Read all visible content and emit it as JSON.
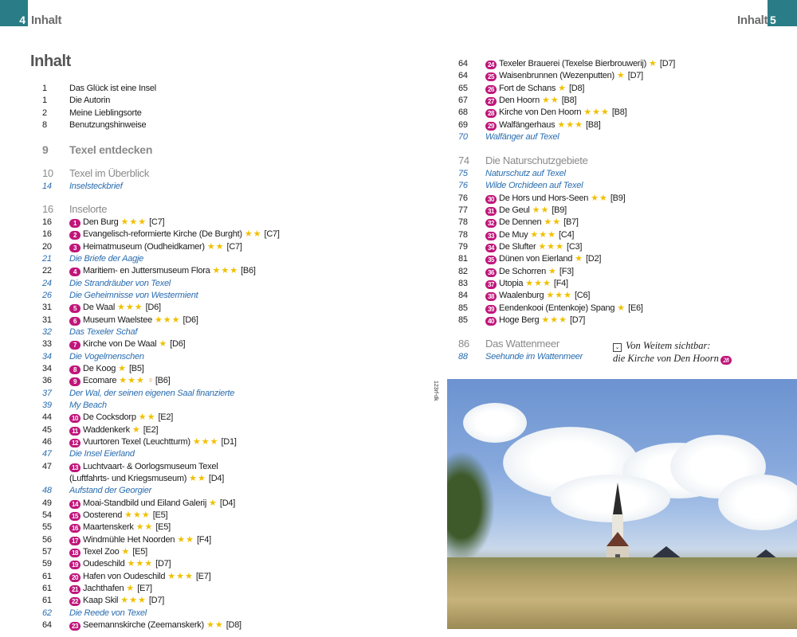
{
  "header": {
    "left_page": "4",
    "left_title": "Inhalt",
    "right_title": "Inhalt",
    "right_page": "5"
  },
  "title": "Inhalt",
  "colors": {
    "accent": "#2a7d86",
    "badge": "#c0157a",
    "stars": "#f0c000",
    "italic_link": "#2a6db0",
    "section": "#8a8a8a"
  },
  "groups": {
    "g1": [
      {
        "type": "plain",
        "p": "1",
        "t": "Das Glück ist eine Insel"
      },
      {
        "type": "plain",
        "p": "1",
        "t": "Die Autorin"
      },
      {
        "type": "plain",
        "p": "2",
        "t": "Meine Lieblingsorte"
      },
      {
        "type": "plain",
        "p": "8",
        "t": "Benutzungshinweise"
      }
    ],
    "g2": [
      {
        "type": "big",
        "p": "9",
        "t": "Texel entdecken"
      }
    ],
    "g3": [
      {
        "type": "sec",
        "p": "10",
        "t": "Texel im Überblick"
      },
      {
        "type": "it",
        "p": "14",
        "t": "Inselsteckbrief"
      }
    ],
    "g4": [
      {
        "type": "sec",
        "p": "16",
        "t": "Inselorte"
      },
      {
        "type": "poi",
        "p": "16",
        "n": "1",
        "t": "Den Burg",
        "s": 3,
        "g": "[C7]"
      },
      {
        "type": "poi",
        "p": "16",
        "n": "2",
        "t": "Evangelisch-reformierte Kirche (De Burght)",
        "s": 2,
        "g": "[C7]"
      },
      {
        "type": "poi",
        "p": "20",
        "n": "3",
        "t": "Heimatmuseum (Oudheidkamer)",
        "s": 2,
        "g": "[C7]"
      },
      {
        "type": "it",
        "p": "21",
        "t": "Die Briefe der Aagje"
      },
      {
        "type": "poi",
        "p": "22",
        "n": "4",
        "t": "Maritiem- en Juttersmuseum Flora",
        "s": 3,
        "g": "[B6]"
      },
      {
        "type": "it",
        "p": "24",
        "t": "Die Strandräuber von Texel"
      },
      {
        "type": "it",
        "p": "26",
        "t": "Die Geheimnisse von Westermient"
      },
      {
        "type": "poi",
        "p": "31",
        "n": "5",
        "t": "De Waal",
        "s": 3,
        "g": "[D6]"
      },
      {
        "type": "poi",
        "p": "31",
        "n": "6",
        "t": "Museum Waelstee",
        "s": 3,
        "g": "[D6]"
      },
      {
        "type": "it",
        "p": "32",
        "t": "Das Texeler Schaf"
      },
      {
        "type": "poi",
        "p": "33",
        "n": "7",
        "t": "Kirche von De Waal",
        "s": 1,
        "g": "[D6]"
      },
      {
        "type": "it",
        "p": "34",
        "t": "Die Vogelmenschen"
      },
      {
        "type": "poi",
        "p": "34",
        "n": "8",
        "t": "De Koog",
        "s": 1,
        "g": "[B5]"
      },
      {
        "type": "poi",
        "p": "36",
        "n": "9",
        "t": "Ecomare",
        "s": 3,
        "g": "[B6]",
        "icon": "child-icon"
      },
      {
        "type": "it",
        "p": "37",
        "t": "Der Wal, der seinen eigenen Saal finanzierte"
      },
      {
        "type": "it",
        "p": "39",
        "t": "My Beach"
      },
      {
        "type": "poi",
        "p": "44",
        "n": "10",
        "t": "De Cocksdorp",
        "s": 2,
        "g": "[E2]"
      },
      {
        "type": "poi",
        "p": "45",
        "n": "11",
        "t": "Waddenkerk",
        "s": 1,
        "g": "[E2]"
      },
      {
        "type": "poi",
        "p": "46",
        "n": "12",
        "t": "Vuurtoren Texel (Leuchtturm)",
        "s": 3,
        "g": "[D1]"
      },
      {
        "type": "it",
        "p": "47",
        "t": "Die Insel Eierland"
      },
      {
        "type": "poi",
        "p": "47",
        "n": "13",
        "t": "Luchtvaart- & Oorlogsmuseum Texel",
        "s": 0,
        "g": ""
      },
      {
        "type": "cont",
        "p": "",
        "t": "(Luftfahrts- und Kriegsmuseum)",
        "s": 2,
        "g": "[D4]"
      },
      {
        "type": "it",
        "p": "48",
        "t": "Aufstand der Georgier"
      },
      {
        "type": "poi",
        "p": "49",
        "n": "14",
        "t": "Moai-Standbild und Eiland Galerij",
        "s": 1,
        "g": "[D4]"
      },
      {
        "type": "poi",
        "p": "54",
        "n": "15",
        "t": "Oosterend",
        "s": 3,
        "g": "[E5]"
      },
      {
        "type": "poi",
        "p": "55",
        "n": "16",
        "t": "Maartenskerk",
        "s": 2,
        "g": "[E5]"
      },
      {
        "type": "poi",
        "p": "56",
        "n": "17",
        "t": "Windmühle Het Noorden",
        "s": 2,
        "g": "[F4]"
      },
      {
        "type": "poi",
        "p": "57",
        "n": "18",
        "t": "Texel Zoo",
        "s": 1,
        "g": "[E5]"
      },
      {
        "type": "poi",
        "p": "59",
        "n": "19",
        "t": "Oudeschild",
        "s": 3,
        "g": "[D7]"
      },
      {
        "type": "poi",
        "p": "61",
        "n": "20",
        "t": "Hafen von Oudeschild",
        "s": 3,
        "g": "[E7]"
      },
      {
        "type": "poi",
        "p": "61",
        "n": "21",
        "t": "Jachthafen",
        "s": 1,
        "g": "[E7]"
      },
      {
        "type": "poi",
        "p": "61",
        "n": "22",
        "t": "Kaap Skil",
        "s": 3,
        "g": "[D7]"
      },
      {
        "type": "it",
        "p": "62",
        "t": "Die Reede von Texel"
      },
      {
        "type": "poi",
        "p": "64",
        "n": "23",
        "t": "Seemannskirche (Zeemanskerk)",
        "s": 2,
        "g": "[D8]"
      }
    ],
    "g5": [
      {
        "type": "poi",
        "p": "64",
        "n": "24",
        "t": "Texeler Brauerei (Texelse Bierbrouwerij)",
        "s": 1,
        "g": "[D7]"
      },
      {
        "type": "poi",
        "p": "64",
        "n": "25",
        "t": "Waisenbrunnen (Wezenputten)",
        "s": 1,
        "g": "[D7]"
      },
      {
        "type": "poi",
        "p": "65",
        "n": "26",
        "t": "Fort de Schans",
        "s": 1,
        "g": "[D8]"
      },
      {
        "type": "poi",
        "p": "67",
        "n": "27",
        "t": "Den Hoorn",
        "s": 2,
        "g": "[B8]"
      },
      {
        "type": "poi",
        "p": "68",
        "n": "28",
        "t": "Kirche von Den Hoorn",
        "s": 3,
        "g": "[B8]"
      },
      {
        "type": "poi",
        "p": "69",
        "n": "29",
        "t": "Walfängerhaus",
        "s": 3,
        "g": "[B8]"
      },
      {
        "type": "it",
        "p": "70",
        "t": "Walfänger auf Texel"
      }
    ],
    "g6": [
      {
        "type": "sec",
        "p": "74",
        "t": "Die Naturschutzgebiete"
      },
      {
        "type": "it",
        "p": "75",
        "t": "Naturschutz auf Texel"
      },
      {
        "type": "it",
        "p": "76",
        "t": "Wilde Orchideen auf Texel"
      },
      {
        "type": "poi",
        "p": "76",
        "n": "30",
        "t": "De Hors und Hors-Seen",
        "s": 2,
        "g": "[B9]"
      },
      {
        "type": "poi",
        "p": "77",
        "n": "31",
        "t": "De Geul",
        "s": 2,
        "g": "[B9]"
      },
      {
        "type": "poi",
        "p": "78",
        "n": "32",
        "t": "De Dennen",
        "s": 2,
        "g": "[B7]"
      },
      {
        "type": "poi",
        "p": "78",
        "n": "33",
        "t": "De Muy",
        "s": 3,
        "g": "[C4]"
      },
      {
        "type": "poi",
        "p": "79",
        "n": "34",
        "t": "De Slufter",
        "s": 3,
        "g": "[C3]"
      },
      {
        "type": "poi",
        "p": "81",
        "n": "35",
        "t": "Dünen von Eierland",
        "s": 1,
        "g": "[D2]"
      },
      {
        "type": "poi",
        "p": "82",
        "n": "36",
        "t": "De Schorren",
        "s": 1,
        "g": "[F3]"
      },
      {
        "type": "poi",
        "p": "83",
        "n": "37",
        "t": "Utopia",
        "s": 3,
        "g": "[F4]"
      },
      {
        "type": "poi",
        "p": "84",
        "n": "38",
        "t": "Waalenburg",
        "s": 3,
        "g": "[C6]"
      },
      {
        "type": "poi",
        "p": "85",
        "n": "39",
        "t": "Eendenkooi (Entenkoje) Spang",
        "s": 1,
        "g": "[E6]"
      },
      {
        "type": "poi",
        "p": "85",
        "n": "40",
        "t": "Hoge Berg",
        "s": 3,
        "g": "[D7]"
      }
    ],
    "g7": [
      {
        "type": "sec",
        "p": "86",
        "t": "Das Wattenmeer"
      },
      {
        "type": "it",
        "p": "88",
        "t": "Seehunde im Wattenmeer"
      }
    ]
  },
  "caption": {
    "line1": "Von Weitem sichtbar:",
    "line2": "die Kirche von Den Hoorn",
    "badge": "28",
    "icon": "checkbox-arrow-icon"
  },
  "photo": {
    "credit": "123rf-dk"
  }
}
